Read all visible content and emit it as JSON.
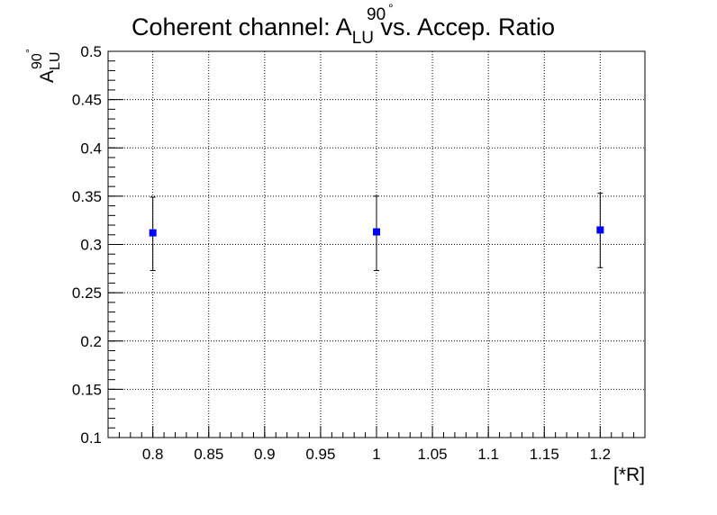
{
  "chart_data": {
    "type": "scatter",
    "title": {
      "prefix": "Coherent channel: A",
      "superscript": "90",
      "degree": "°",
      "subscript": "LU",
      "suffix": " vs. Accep. Ratio"
    },
    "ylabel": {
      "base": "A",
      "superscript": "90",
      "degree": "°",
      "subscript": "LU"
    },
    "xlabel": "[*R]",
    "xlim": [
      0.76,
      1.24
    ],
    "ylim": [
      0.1,
      0.5
    ],
    "x_ticks": [
      0.8,
      0.85,
      0.9,
      0.95,
      1,
      1.05,
      1.1,
      1.15,
      1.2
    ],
    "x_tick_labels": [
      "0.8",
      "0.85",
      "0.9",
      "0.95",
      "1",
      "1.05",
      "1.1",
      "1.15",
      "1.2"
    ],
    "y_ticks": [
      0.1,
      0.15,
      0.2,
      0.25,
      0.3,
      0.35,
      0.4,
      0.45,
      0.5
    ],
    "y_tick_labels": [
      "0.1",
      "0.15",
      "0.2",
      "0.25",
      "0.3",
      "0.35",
      "0.4",
      "0.45",
      "0.5"
    ],
    "grid": true,
    "series": [
      {
        "marker": "square",
        "color": "#0000ff",
        "error_bar_color": "#000000",
        "points": [
          {
            "x": 0.8,
            "y": 0.312,
            "y_err_low": 0.039,
            "y_err_high": 0.037
          },
          {
            "x": 1.0,
            "y": 0.313,
            "y_err_low": 0.04,
            "y_err_high": 0.037
          },
          {
            "x": 1.2,
            "y": 0.315,
            "y_err_low": 0.039,
            "y_err_high": 0.038
          }
        ]
      }
    ]
  }
}
